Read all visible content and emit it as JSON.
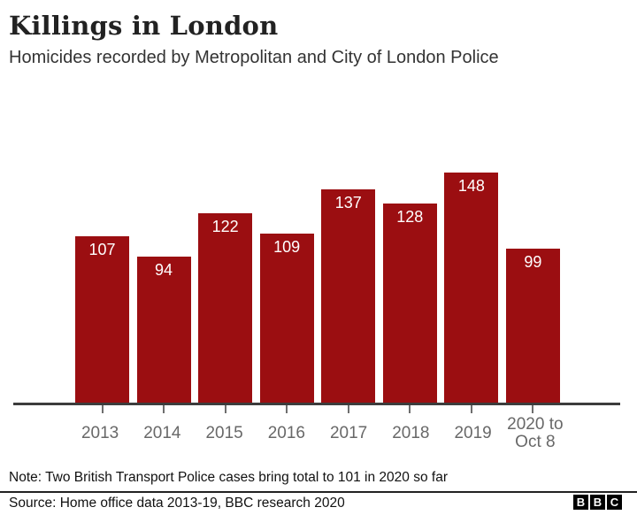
{
  "header": {
    "title": "Killings in London",
    "subtitle": "Homicides recorded by Metropolitan and City of London Police"
  },
  "chart_data": {
    "type": "bar",
    "categories": [
      "2013",
      "2014",
      "2015",
      "2016",
      "2017",
      "2018",
      "2019",
      "2020 to Oct 8"
    ],
    "values": [
      107,
      94,
      122,
      109,
      137,
      128,
      148,
      99
    ],
    "title": "Killings in London",
    "xlabel": "",
    "ylabel": "",
    "ylim": [
      0,
      148
    ],
    "grid": false,
    "legend": false,
    "bar_color": "#9b0e11",
    "value_label_color": "#ffffff",
    "axis_color": "#3c3c3c",
    "tick_color": "#6e6e6e",
    "xlabel_color": "#686868"
  },
  "footer": {
    "note": "Note: Two British Transport Police cases bring total to 101 in 2020 so far",
    "source": "Source: Home office data 2013-19, BBC research 2020",
    "logo_letters": [
      "B",
      "B",
      "C"
    ]
  }
}
